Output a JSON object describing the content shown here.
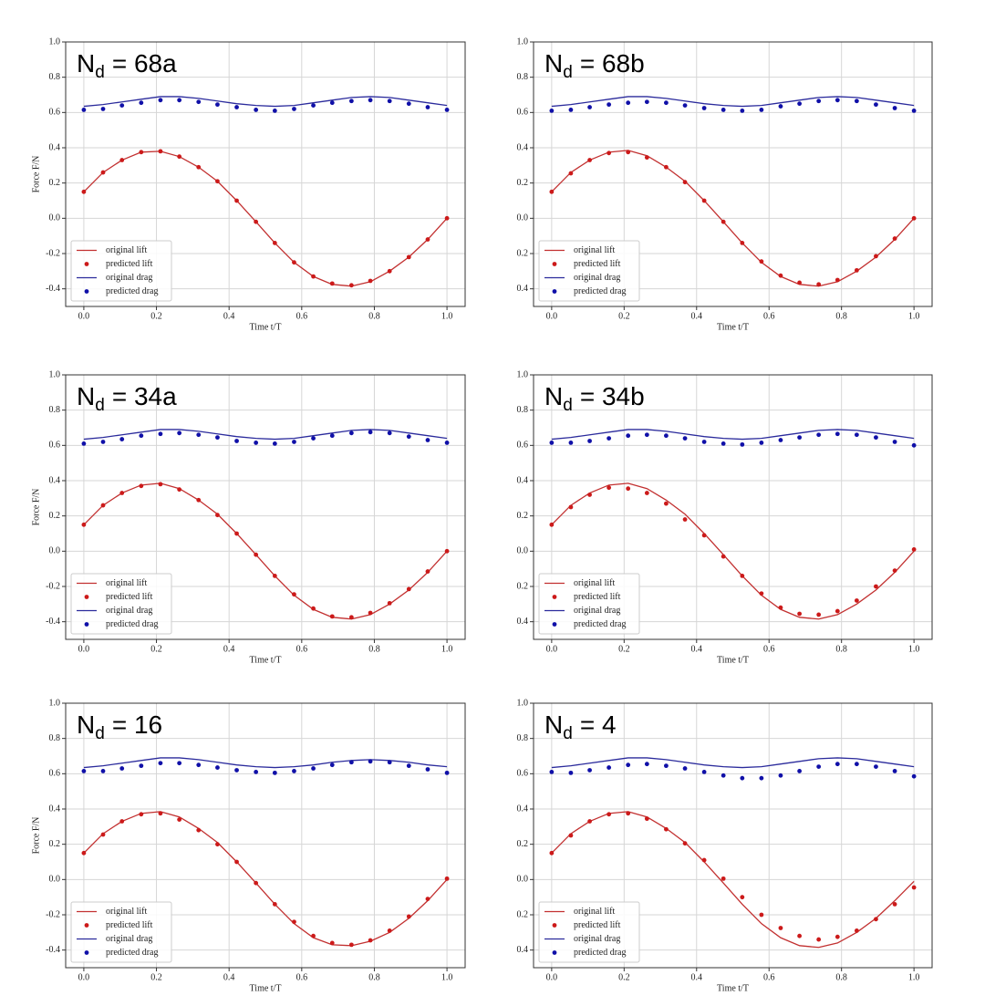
{
  "chart_data": [
    {
      "type": "line",
      "title_symbol": "N",
      "title_subscript": "d",
      "title_value": "= 68a",
      "xlabel": "Time t/T",
      "ylabel": "Force F/N",
      "x": [
        0,
        0.053,
        0.105,
        0.158,
        0.211,
        0.263,
        0.316,
        0.368,
        0.421,
        0.474,
        0.526,
        0.579,
        0.632,
        0.684,
        0.737,
        0.789,
        0.842,
        0.895,
        0.947,
        1.0
      ],
      "xlim": [
        -0.05,
        1.05
      ],
      "ylim": [
        -0.5,
        1.0
      ],
      "xticks": [
        {
          "value": 0,
          "label": "0.0"
        },
        0.2,
        0.4,
        0.6,
        0.8,
        {
          "value": 1,
          "label": "1.0"
        }
      ],
      "yticks": [
        -0.4,
        -0.2,
        {
          "value": 0,
          "label": "0.0"
        },
        0.2,
        0.4,
        0.6,
        0.8,
        {
          "value": 1,
          "label": "1.0"
        }
      ],
      "grid": true,
      "legend": "lower left",
      "series": [
        {
          "name": "original lift",
          "kind": "line",
          "color": "#c23030",
          "values": [
            0.15,
            0.26,
            0.33,
            0.375,
            0.38,
            0.35,
            0.29,
            0.21,
            0.1,
            -0.02,
            -0.14,
            -0.25,
            -0.33,
            -0.375,
            -0.385,
            -0.36,
            -0.3,
            -0.22,
            -0.12,
            0.0
          ]
        },
        {
          "name": "predicted lift",
          "kind": "points",
          "color": "#cc1a1a",
          "values": [
            0.15,
            0.26,
            0.33,
            0.375,
            0.38,
            0.35,
            0.29,
            0.21,
            0.1,
            -0.02,
            -0.14,
            -0.25,
            -0.33,
            -0.37,
            -0.38,
            -0.355,
            -0.3,
            -0.22,
            -0.12,
            0.0
          ]
        },
        {
          "name": "original drag",
          "kind": "line",
          "color": "#2b2b9c",
          "values": [
            0.635,
            0.645,
            0.66,
            0.675,
            0.69,
            0.69,
            0.68,
            0.665,
            0.65,
            0.64,
            0.635,
            0.64,
            0.655,
            0.67,
            0.685,
            0.69,
            0.685,
            0.67,
            0.655,
            0.64
          ]
        },
        {
          "name": "predicted drag",
          "kind": "points",
          "color": "#1010a8",
          "values": [
            0.615,
            0.62,
            0.64,
            0.655,
            0.67,
            0.67,
            0.66,
            0.645,
            0.63,
            0.615,
            0.61,
            0.62,
            0.64,
            0.655,
            0.665,
            0.67,
            0.665,
            0.65,
            0.63,
            0.615
          ]
        }
      ]
    },
    {
      "type": "line",
      "title_symbol": "N",
      "title_subscript": "d",
      "title_value": "= 68b",
      "xlabel": "Time t/T",
      "x": [
        0,
        0.053,
        0.105,
        0.158,
        0.211,
        0.263,
        0.316,
        0.368,
        0.421,
        0.474,
        0.526,
        0.579,
        0.632,
        0.684,
        0.737,
        0.789,
        0.842,
        0.895,
        0.947,
        1.0
      ],
      "xlim": [
        -0.05,
        1.05
      ],
      "ylim": [
        -0.5,
        1.0
      ],
      "xticks": [
        {
          "value": 0,
          "label": "0.0"
        },
        0.2,
        0.4,
        0.6,
        0.8,
        {
          "value": 1,
          "label": "1.0"
        }
      ],
      "yticks": [
        {
          "value": -0.4,
          "label": "0.4"
        },
        {
          "value": -0.2,
          "label": "0.2"
        },
        {
          "value": 0,
          "label": "0.0"
        },
        0.2,
        0.4,
        0.6,
        0.8,
        {
          "value": 1,
          "label": "1.0"
        }
      ],
      "grid": true,
      "legend": "lower left",
      "series": [
        {
          "name": "original lift",
          "kind": "line",
          "color": "#c23030",
          "values": [
            0.15,
            0.26,
            0.33,
            0.375,
            0.385,
            0.355,
            0.29,
            0.21,
            0.1,
            -0.02,
            -0.14,
            -0.25,
            -0.33,
            -0.375,
            -0.385,
            -0.36,
            -0.3,
            -0.22,
            -0.12,
            0.0
          ]
        },
        {
          "name": "predicted lift",
          "kind": "points",
          "color": "#cc1a1a",
          "values": [
            0.15,
            0.255,
            0.33,
            0.37,
            0.375,
            0.345,
            0.29,
            0.205,
            0.1,
            -0.02,
            -0.14,
            -0.245,
            -0.325,
            -0.365,
            -0.375,
            -0.35,
            -0.295,
            -0.215,
            -0.115,
            0.0
          ]
        },
        {
          "name": "original drag",
          "kind": "line",
          "color": "#2b2b9c",
          "values": [
            0.635,
            0.645,
            0.66,
            0.675,
            0.69,
            0.69,
            0.68,
            0.665,
            0.65,
            0.64,
            0.635,
            0.64,
            0.655,
            0.67,
            0.685,
            0.69,
            0.685,
            0.67,
            0.655,
            0.64
          ]
        },
        {
          "name": "predicted drag",
          "kind": "points",
          "color": "#1010a8",
          "values": [
            0.61,
            0.615,
            0.63,
            0.645,
            0.655,
            0.66,
            0.655,
            0.64,
            0.625,
            0.615,
            0.61,
            0.615,
            0.635,
            0.65,
            0.665,
            0.67,
            0.665,
            0.645,
            0.625,
            0.61
          ]
        }
      ]
    },
    {
      "type": "line",
      "title_symbol": "N",
      "title_subscript": "d",
      "title_value": "= 34a",
      "xlabel": "Time t/T",
      "ylabel": "Force F/N",
      "x": [
        0,
        0.053,
        0.105,
        0.158,
        0.211,
        0.263,
        0.316,
        0.368,
        0.421,
        0.474,
        0.526,
        0.579,
        0.632,
        0.684,
        0.737,
        0.789,
        0.842,
        0.895,
        0.947,
        1.0
      ],
      "xlim": [
        -0.05,
        1.05
      ],
      "ylim": [
        -0.5,
        1.0
      ],
      "xticks": [
        {
          "value": 0,
          "label": "0.0"
        },
        0.2,
        0.4,
        0.6,
        0.8,
        {
          "value": 1,
          "label": "1.0"
        }
      ],
      "yticks": [
        -0.4,
        -0.2,
        {
          "value": 0,
          "label": "0.0"
        },
        0.2,
        0.4,
        0.6,
        0.8,
        {
          "value": 1,
          "label": "1.0"
        }
      ],
      "grid": true,
      "legend": "lower left",
      "series": [
        {
          "name": "original lift",
          "kind": "line",
          "color": "#c23030",
          "values": [
            0.15,
            0.26,
            0.33,
            0.375,
            0.385,
            0.355,
            0.29,
            0.21,
            0.1,
            -0.02,
            -0.14,
            -0.25,
            -0.33,
            -0.375,
            -0.385,
            -0.36,
            -0.3,
            -0.22,
            -0.12,
            0.0
          ]
        },
        {
          "name": "predicted lift",
          "kind": "points",
          "color": "#cc1a1a",
          "values": [
            0.15,
            0.26,
            0.33,
            0.37,
            0.38,
            0.35,
            0.29,
            0.205,
            0.1,
            -0.02,
            -0.14,
            -0.245,
            -0.325,
            -0.37,
            -0.375,
            -0.35,
            -0.295,
            -0.215,
            -0.115,
            0.0
          ]
        },
        {
          "name": "original drag",
          "kind": "line",
          "color": "#2b2b9c",
          "values": [
            0.635,
            0.645,
            0.66,
            0.675,
            0.69,
            0.69,
            0.68,
            0.665,
            0.65,
            0.64,
            0.635,
            0.64,
            0.655,
            0.67,
            0.685,
            0.69,
            0.685,
            0.67,
            0.655,
            0.64
          ]
        },
        {
          "name": "predicted drag",
          "kind": "points",
          "color": "#1010a8",
          "values": [
            0.61,
            0.62,
            0.635,
            0.655,
            0.665,
            0.67,
            0.66,
            0.645,
            0.625,
            0.615,
            0.61,
            0.62,
            0.64,
            0.655,
            0.67,
            0.675,
            0.67,
            0.65,
            0.63,
            0.615
          ]
        }
      ]
    },
    {
      "type": "line",
      "title_symbol": "N",
      "title_subscript": "d",
      "title_value": "= 34b",
      "xlabel": "Time t/T",
      "x": [
        0,
        0.053,
        0.105,
        0.158,
        0.211,
        0.263,
        0.316,
        0.368,
        0.421,
        0.474,
        0.526,
        0.579,
        0.632,
        0.684,
        0.737,
        0.789,
        0.842,
        0.895,
        0.947,
        1.0
      ],
      "xlim": [
        -0.05,
        1.05
      ],
      "ylim": [
        -0.5,
        1.0
      ],
      "xticks": [
        {
          "value": 0,
          "label": "0.0"
        },
        0.2,
        0.4,
        0.6,
        0.8,
        {
          "value": 1,
          "label": "1.0"
        }
      ],
      "yticks": [
        {
          "value": -0.4,
          "label": "0.4"
        },
        {
          "value": -0.2,
          "label": "0.2"
        },
        {
          "value": 0,
          "label": "0.0"
        },
        0.2,
        0.4,
        0.6,
        0.8,
        {
          "value": 1,
          "label": "1.0"
        }
      ],
      "grid": true,
      "legend": "lower left",
      "series": [
        {
          "name": "original lift",
          "kind": "line",
          "color": "#c23030",
          "values": [
            0.15,
            0.26,
            0.33,
            0.375,
            0.385,
            0.355,
            0.29,
            0.21,
            0.1,
            -0.02,
            -0.14,
            -0.25,
            -0.33,
            -0.375,
            -0.385,
            -0.36,
            -0.3,
            -0.22,
            -0.12,
            0.0
          ]
        },
        {
          "name": "predicted lift",
          "kind": "points",
          "color": "#cc1a1a",
          "values": [
            0.15,
            0.25,
            0.32,
            0.36,
            0.355,
            0.33,
            0.27,
            0.18,
            0.09,
            -0.03,
            -0.14,
            -0.24,
            -0.32,
            -0.355,
            -0.36,
            -0.34,
            -0.28,
            -0.2,
            -0.11,
            0.01
          ]
        },
        {
          "name": "original drag",
          "kind": "line",
          "color": "#2b2b9c",
          "values": [
            0.635,
            0.645,
            0.66,
            0.675,
            0.69,
            0.69,
            0.68,
            0.665,
            0.65,
            0.64,
            0.635,
            0.64,
            0.655,
            0.67,
            0.685,
            0.69,
            0.685,
            0.67,
            0.655,
            0.64
          ]
        },
        {
          "name": "predicted drag",
          "kind": "points",
          "color": "#1010a8",
          "values": [
            0.615,
            0.615,
            0.625,
            0.64,
            0.655,
            0.66,
            0.655,
            0.64,
            0.62,
            0.61,
            0.605,
            0.615,
            0.63,
            0.645,
            0.66,
            0.665,
            0.66,
            0.645,
            0.62,
            0.6
          ]
        }
      ]
    },
    {
      "type": "line",
      "title_symbol": "N",
      "title_subscript": "d",
      "title_value": "= 16",
      "xlabel": "Time t/T",
      "ylabel": "Force F/N",
      "x": [
        0,
        0.053,
        0.105,
        0.158,
        0.211,
        0.263,
        0.316,
        0.368,
        0.421,
        0.474,
        0.526,
        0.579,
        0.632,
        0.684,
        0.737,
        0.789,
        0.842,
        0.895,
        0.947,
        1.0
      ],
      "xlim": [
        -0.05,
        1.05
      ],
      "ylim": [
        -0.5,
        1.0
      ],
      "xticks": [
        {
          "value": 0,
          "label": "0.0"
        },
        0.2,
        0.4,
        0.6,
        0.8,
        {
          "value": 1,
          "label": "1.0"
        }
      ],
      "yticks": [
        -0.4,
        -0.2,
        {
          "value": 0,
          "label": "0.0"
        },
        0.2,
        0.4,
        0.6,
        0.8,
        {
          "value": 1,
          "label": "1.0"
        }
      ],
      "grid": true,
      "legend": "lower left",
      "series": [
        {
          "name": "original lift",
          "kind": "line",
          "color": "#c23030",
          "values": [
            0.15,
            0.26,
            0.33,
            0.375,
            0.385,
            0.355,
            0.29,
            0.21,
            0.1,
            -0.02,
            -0.14,
            -0.25,
            -0.33,
            -0.37,
            -0.375,
            -0.35,
            -0.3,
            -0.22,
            -0.12,
            0.0
          ]
        },
        {
          "name": "predicted lift",
          "kind": "points",
          "color": "#cc1a1a",
          "values": [
            0.15,
            0.255,
            0.33,
            0.37,
            0.375,
            0.34,
            0.28,
            0.2,
            0.1,
            -0.02,
            -0.14,
            -0.24,
            -0.32,
            -0.36,
            -0.37,
            -0.345,
            -0.29,
            -0.21,
            -0.11,
            0.005
          ]
        },
        {
          "name": "original drag",
          "kind": "line",
          "color": "#2b2b9c",
          "values": [
            0.635,
            0.645,
            0.66,
            0.675,
            0.69,
            0.69,
            0.68,
            0.665,
            0.65,
            0.64,
            0.635,
            0.64,
            0.65,
            0.665,
            0.675,
            0.68,
            0.675,
            0.665,
            0.65,
            0.64
          ]
        },
        {
          "name": "predicted drag",
          "kind": "points",
          "color": "#1010a8",
          "values": [
            0.615,
            0.615,
            0.63,
            0.645,
            0.66,
            0.66,
            0.65,
            0.635,
            0.62,
            0.61,
            0.605,
            0.615,
            0.63,
            0.65,
            0.665,
            0.67,
            0.665,
            0.645,
            0.625,
            0.605
          ]
        }
      ]
    },
    {
      "type": "line",
      "title_symbol": "N",
      "title_subscript": "d",
      "title_value": "= 4",
      "xlabel": "Time t/T",
      "x": [
        0,
        0.053,
        0.105,
        0.158,
        0.211,
        0.263,
        0.316,
        0.368,
        0.421,
        0.474,
        0.526,
        0.579,
        0.632,
        0.684,
        0.737,
        0.789,
        0.842,
        0.895,
        0.947,
        1.0
      ],
      "xlim": [
        -0.05,
        1.05
      ],
      "ylim": [
        -0.5,
        1.0
      ],
      "xticks": [
        {
          "value": 0,
          "label": "0.0"
        },
        0.2,
        0.4,
        0.6,
        0.8,
        {
          "value": 1,
          "label": "1.0"
        }
      ],
      "yticks": [
        {
          "value": -0.4,
          "label": "0.4"
        },
        {
          "value": -0.2,
          "label": "0.2"
        },
        {
          "value": 0,
          "label": "0.0"
        },
        0.2,
        0.4,
        0.6,
        0.8,
        {
          "value": 1,
          "label": "1.0"
        }
      ],
      "grid": true,
      "legend": "lower left",
      "series": [
        {
          "name": "original lift",
          "kind": "line",
          "color": "#c23030",
          "values": [
            0.15,
            0.26,
            0.33,
            0.375,
            0.385,
            0.355,
            0.29,
            0.21,
            0.1,
            -0.02,
            -0.14,
            -0.25,
            -0.33,
            -0.375,
            -0.385,
            -0.36,
            -0.3,
            -0.22,
            -0.12,
            -0.01
          ]
        },
        {
          "name": "predicted lift",
          "kind": "points",
          "color": "#cc1a1a",
          "values": [
            0.15,
            0.25,
            0.33,
            0.37,
            0.375,
            0.345,
            0.285,
            0.205,
            0.11,
            0.005,
            -0.1,
            -0.2,
            -0.275,
            -0.32,
            -0.34,
            -0.325,
            -0.29,
            -0.225,
            -0.14,
            -0.045
          ]
        },
        {
          "name": "original drag",
          "kind": "line",
          "color": "#2b2b9c",
          "values": [
            0.635,
            0.645,
            0.66,
            0.675,
            0.69,
            0.69,
            0.68,
            0.665,
            0.65,
            0.64,
            0.635,
            0.64,
            0.655,
            0.67,
            0.685,
            0.69,
            0.685,
            0.67,
            0.655,
            0.64
          ]
        },
        {
          "name": "predicted drag",
          "kind": "points",
          "color": "#1010a8",
          "values": [
            0.61,
            0.605,
            0.62,
            0.635,
            0.65,
            0.655,
            0.645,
            0.63,
            0.61,
            0.59,
            0.575,
            0.575,
            0.59,
            0.615,
            0.64,
            0.655,
            0.655,
            0.64,
            0.615,
            0.585
          ]
        }
      ]
    }
  ]
}
